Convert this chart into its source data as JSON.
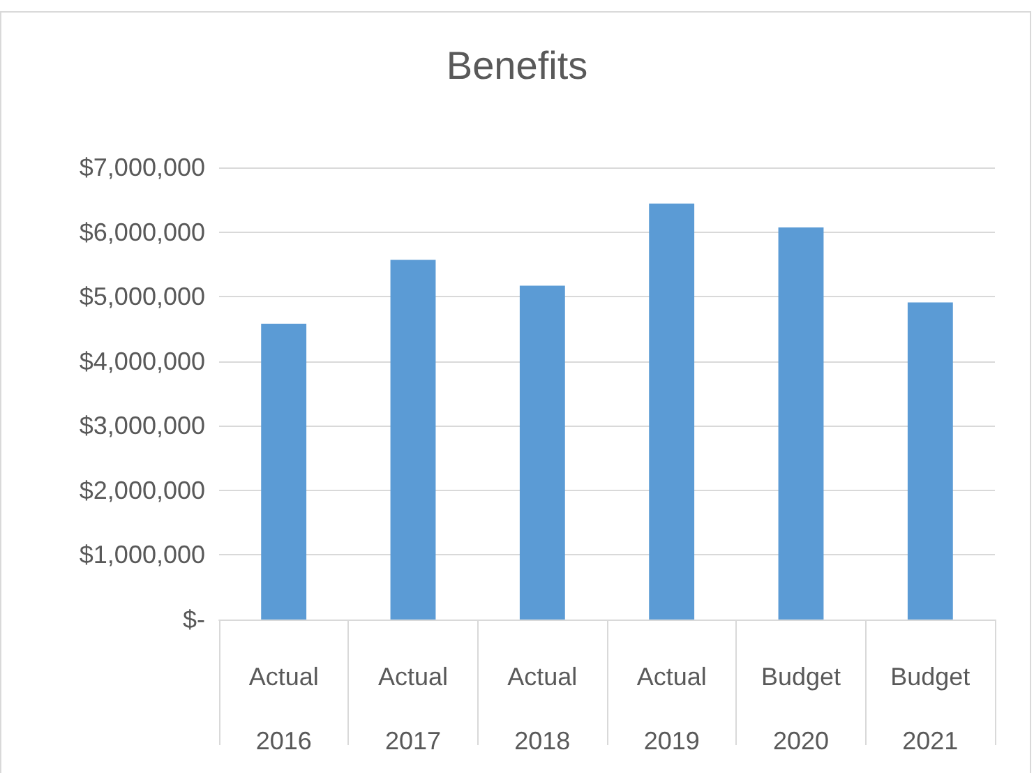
{
  "chart_data": {
    "type": "bar",
    "title": "Benefits",
    "categories": [
      "Actual 2016",
      "Actual 2017",
      "Actual 2018",
      "Actual 2019",
      "Budget 2020",
      "Budget 2021"
    ],
    "values": [
      4580000,
      5570000,
      5170000,
      6440000,
      6070000,
      4910000
    ],
    "color": "#5b9bd5",
    "ylim": [
      0,
      7000000
    ],
    "yticks": [
      {
        "value": 0,
        "label": "$-"
      },
      {
        "value": 1000000,
        "label": "$1,000,000"
      },
      {
        "value": 2000000,
        "label": "$2,000,000"
      },
      {
        "value": 3000000,
        "label": "$3,000,000"
      },
      {
        "value": 4000000,
        "label": "$4,000,000"
      },
      {
        "value": 5000000,
        "label": "$5,000,000"
      },
      {
        "value": 6000000,
        "label": "$6,000,000"
      },
      {
        "value": 7000000,
        "label": "$7,000,000"
      }
    ],
    "grid": "y"
  }
}
